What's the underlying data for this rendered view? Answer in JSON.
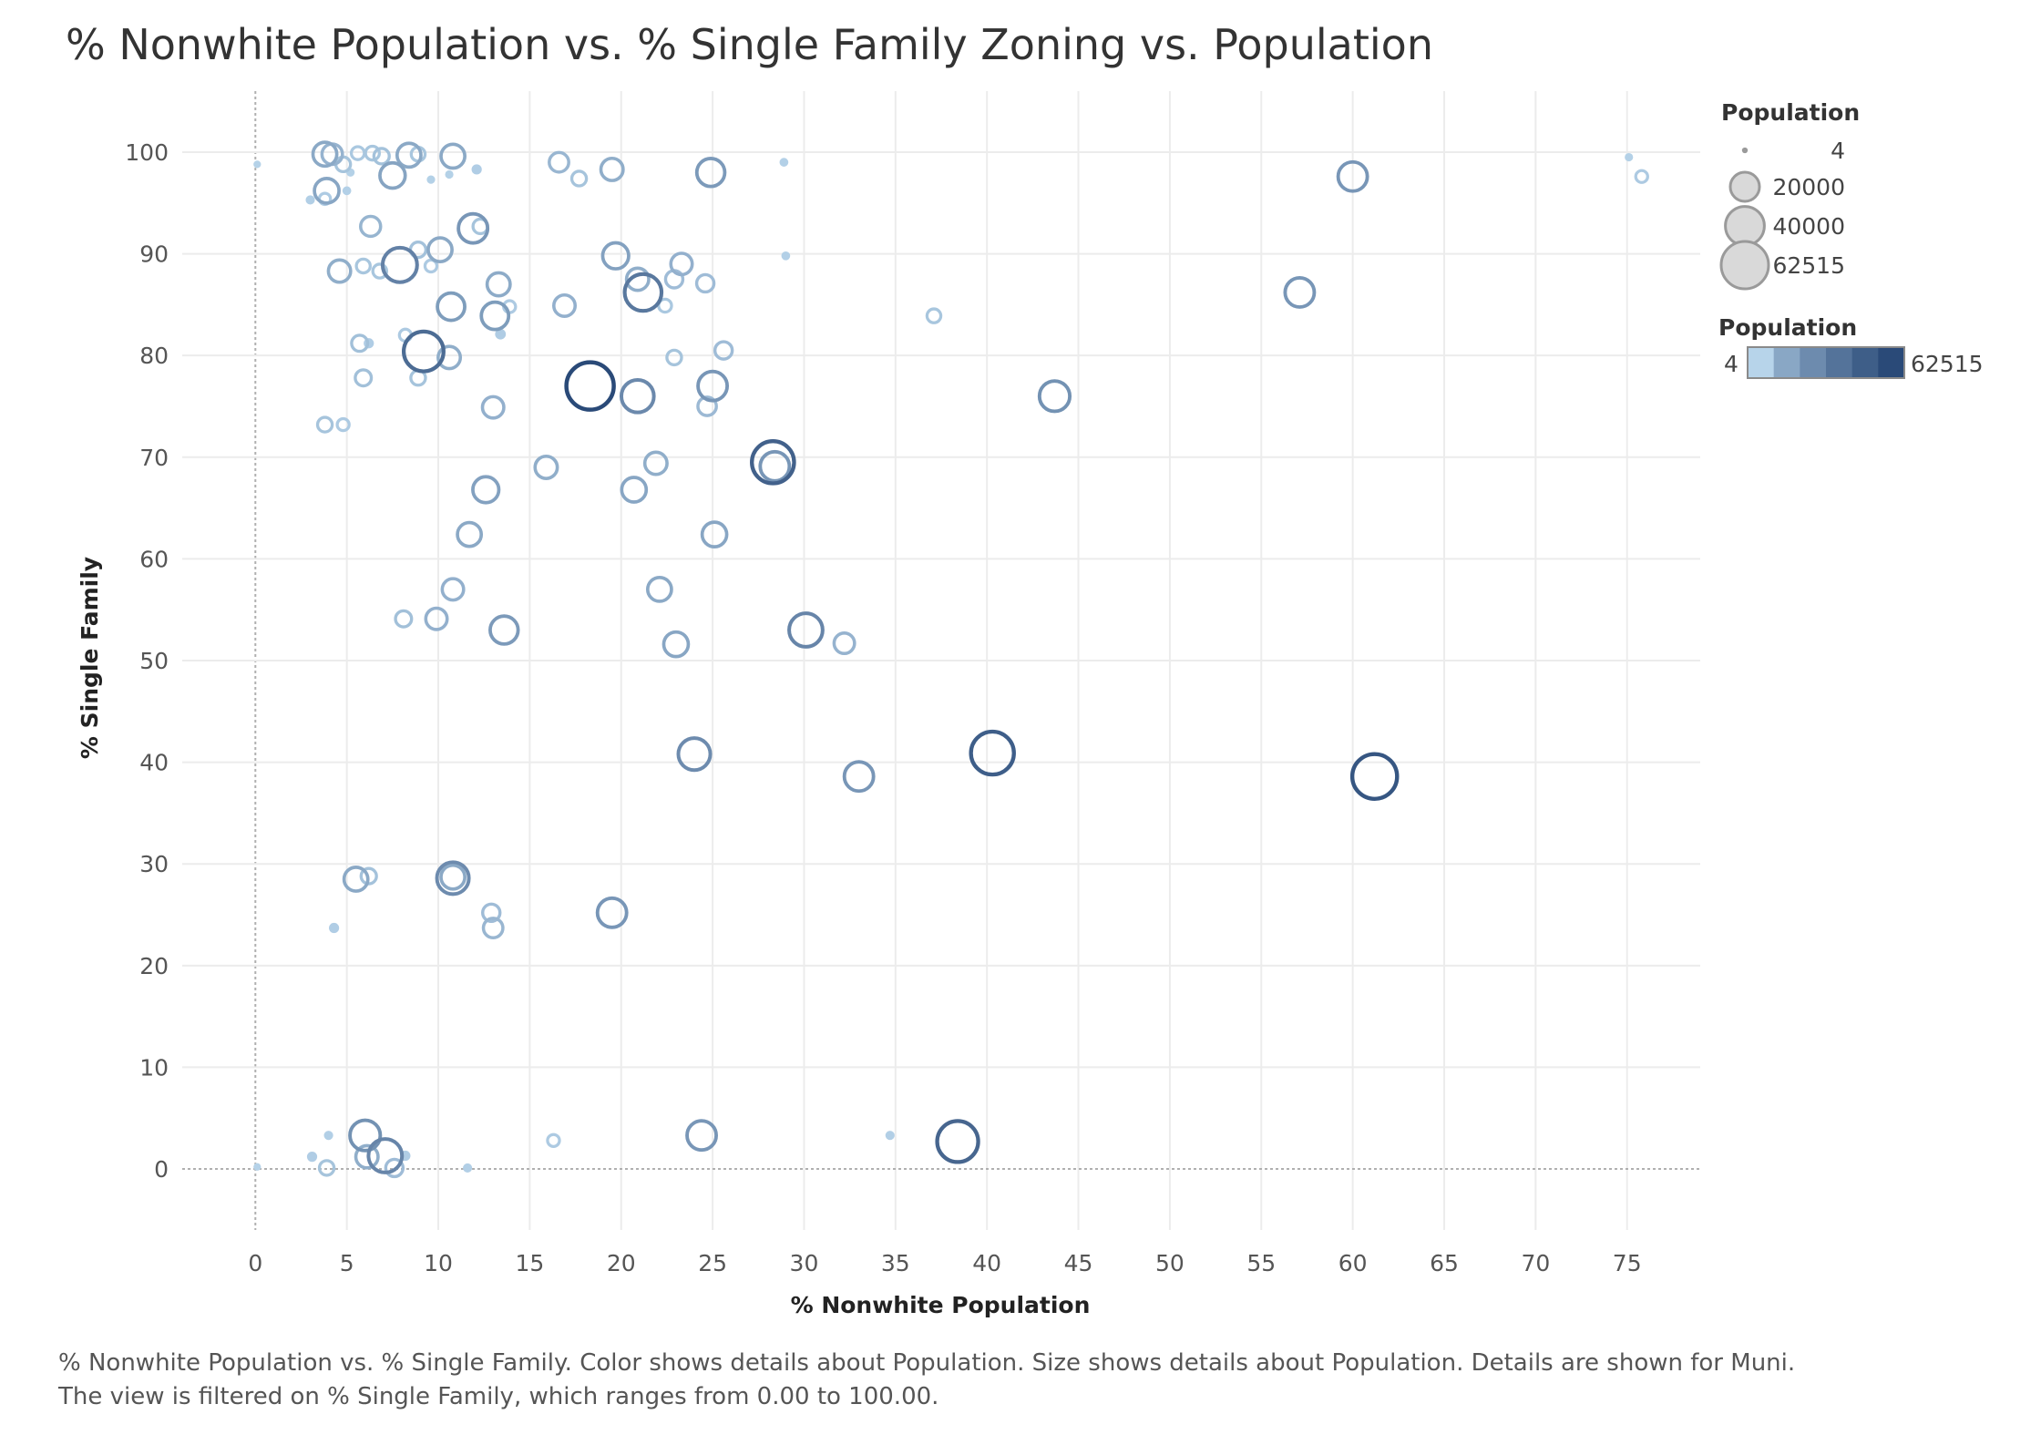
{
  "title": "% Nonwhite Population vs. % Single Family Zoning vs. Population",
  "caption": {
    "line1": "% Nonwhite Population vs. % Single Family.  Color shows details about Population.  Size shows details about Population.  Details are shown for Muni.",
    "line2": "The view is filtered on % Single Family, which ranges from 0.00 to 100.00."
  },
  "colors": {
    "light": "#b7d4ea",
    "dark": "#2a4a78",
    "grid": "#ececec",
    "zero_line": "#b0b0b0",
    "legend_gray": "#9a9a9a"
  },
  "chart_data": {
    "type": "scatter",
    "xlabel": "% Nonwhite Population",
    "ylabel": "% Single Family",
    "xlim": [
      -4,
      79
    ],
    "ylim": [
      -6,
      106
    ],
    "x_ticks": [
      0,
      5,
      10,
      15,
      20,
      25,
      30,
      35,
      40,
      45,
      50,
      55,
      60,
      65,
      70,
      75
    ],
    "y_ticks": [
      0,
      10,
      20,
      30,
      40,
      50,
      60,
      70,
      80,
      90,
      100
    ],
    "grid": true,
    "size_legend": {
      "title": "Population",
      "entries": [
        "4",
        "20000",
        "40000",
        "62515"
      ],
      "values": [
        4,
        20000,
        40000,
        62515
      ],
      "placement": "top-right"
    },
    "color_legend": {
      "title": "Population",
      "min_label": "4",
      "max_label": "62515",
      "min": 4,
      "max": 62515,
      "steps": 6,
      "placement": "top-right"
    },
    "points": [
      {
        "x": 0.1,
        "y": 98.8,
        "pop": 150
      },
      {
        "x": 0.1,
        "y": 0.2,
        "pop": 150
      },
      {
        "x": 3.8,
        "y": 99.8,
        "pop": 12000
      },
      {
        "x": 4.2,
        "y": 99.8,
        "pop": 8000
      },
      {
        "x": 4.8,
        "y": 98.8,
        "pop": 3000
      },
      {
        "x": 5.2,
        "y": 98.0,
        "pop": 300
      },
      {
        "x": 5.6,
        "y": 99.9,
        "pop": 2000
      },
      {
        "x": 6.4,
        "y": 99.9,
        "pop": 2500
      },
      {
        "x": 6.9,
        "y": 99.6,
        "pop": 3500
      },
      {
        "x": 8.4,
        "y": 99.7,
        "pop": 12000
      },
      {
        "x": 8.9,
        "y": 99.8,
        "pop": 2500
      },
      {
        "x": 10.8,
        "y": 99.6,
        "pop": 12000
      },
      {
        "x": 10.6,
        "y": 97.8,
        "pop": 300
      },
      {
        "x": 9.6,
        "y": 97.3,
        "pop": 300
      },
      {
        "x": 12.1,
        "y": 98.3,
        "pop": 800
      },
      {
        "x": 7.5,
        "y": 97.7,
        "pop": 14000
      },
      {
        "x": 3.0,
        "y": 95.3,
        "pop": 500
      },
      {
        "x": 3.8,
        "y": 95.4,
        "pop": 1200
      },
      {
        "x": 3.9,
        "y": 96.2,
        "pop": 13000
      },
      {
        "x": 5.0,
        "y": 96.2,
        "pop": 400
      },
      {
        "x": 16.6,
        "y": 99.0,
        "pop": 7000
      },
      {
        "x": 17.7,
        "y": 97.4,
        "pop": 3000
      },
      {
        "x": 19.5,
        "y": 98.3,
        "pop": 10000
      },
      {
        "x": 24.9,
        "y": 98.0,
        "pop": 18000
      },
      {
        "x": 28.9,
        "y": 99.0,
        "pop": 400
      },
      {
        "x": 6.3,
        "y": 92.7,
        "pop": 7500
      },
      {
        "x": 11.9,
        "y": 92.5,
        "pop": 20000
      },
      {
        "x": 12.3,
        "y": 92.7,
        "pop": 3000
      },
      {
        "x": 8.9,
        "y": 90.4,
        "pop": 3500
      },
      {
        "x": 10.1,
        "y": 90.4,
        "pop": 12000
      },
      {
        "x": 9.6,
        "y": 88.8,
        "pop": 1500
      },
      {
        "x": 4.6,
        "y": 88.3,
        "pop": 10000
      },
      {
        "x": 5.9,
        "y": 88.8,
        "pop": 2500
      },
      {
        "x": 6.8,
        "y": 88.3,
        "pop": 2500
      },
      {
        "x": 7.9,
        "y": 88.9,
        "pop": 30000
      },
      {
        "x": 19.7,
        "y": 89.8,
        "pop": 15000
      },
      {
        "x": 23.3,
        "y": 89.0,
        "pop": 9000
      },
      {
        "x": 29.0,
        "y": 89.8,
        "pop": 400
      },
      {
        "x": 20.9,
        "y": 87.5,
        "pop": 10000
      },
      {
        "x": 21.2,
        "y": 86.2,
        "pop": 35000
      },
      {
        "x": 22.9,
        "y": 87.5,
        "pop": 5000
      },
      {
        "x": 24.6,
        "y": 87.1,
        "pop": 5000
      },
      {
        "x": 13.3,
        "y": 87.0,
        "pop": 11000
      },
      {
        "x": 10.7,
        "y": 84.8,
        "pop": 17000
      },
      {
        "x": 13.1,
        "y": 83.9,
        "pop": 17000
      },
      {
        "x": 13.9,
        "y": 84.8,
        "pop": 1500
      },
      {
        "x": 16.9,
        "y": 84.9,
        "pop": 9000
      },
      {
        "x": 22.4,
        "y": 84.9,
        "pop": 2000
      },
      {
        "x": 13.4,
        "y": 82.1,
        "pop": 1000
      },
      {
        "x": 37.1,
        "y": 83.9,
        "pop": 2500
      },
      {
        "x": 57.1,
        "y": 86.2,
        "pop": 20000
      },
      {
        "x": 60.0,
        "y": 97.6,
        "pop": 20000
      },
      {
        "x": 75.1,
        "y": 99.5,
        "pop": 300
      },
      {
        "x": 75.8,
        "y": 97.6,
        "pop": 1500
      },
      {
        "x": 8.2,
        "y": 82.0,
        "pop": 1500
      },
      {
        "x": 5.7,
        "y": 81.2,
        "pop": 4000
      },
      {
        "x": 6.2,
        "y": 81.2,
        "pop": 800
      },
      {
        "x": 9.2,
        "y": 80.4,
        "pop": 42000
      },
      {
        "x": 10.6,
        "y": 79.8,
        "pop": 10000
      },
      {
        "x": 22.9,
        "y": 79.8,
        "pop": 3000
      },
      {
        "x": 25.6,
        "y": 80.5,
        "pop": 5000
      },
      {
        "x": 5.9,
        "y": 77.8,
        "pop": 4000
      },
      {
        "x": 8.9,
        "y": 77.8,
        "pop": 3000
      },
      {
        "x": 18.3,
        "y": 77.0,
        "pop": 62515
      },
      {
        "x": 20.9,
        "y": 76.0,
        "pop": 26000
      },
      {
        "x": 25.0,
        "y": 77.0,
        "pop": 20000
      },
      {
        "x": 24.7,
        "y": 75.0,
        "pop": 6000
      },
      {
        "x": 13.0,
        "y": 74.9,
        "pop": 9000
      },
      {
        "x": 43.7,
        "y": 76.0,
        "pop": 22000
      },
      {
        "x": 3.8,
        "y": 73.2,
        "pop": 3000
      },
      {
        "x": 4.8,
        "y": 73.2,
        "pop": 1500
      },
      {
        "x": 28.3,
        "y": 69.5,
        "pop": 48000
      },
      {
        "x": 28.4,
        "y": 69.1,
        "pop": 20000
      },
      {
        "x": 15.9,
        "y": 69.0,
        "pop": 10000
      },
      {
        "x": 21.9,
        "y": 69.4,
        "pop": 10000
      },
      {
        "x": 12.6,
        "y": 66.8,
        "pop": 15000
      },
      {
        "x": 20.7,
        "y": 66.8,
        "pop": 13000
      },
      {
        "x": 11.7,
        "y": 62.4,
        "pop": 12000
      },
      {
        "x": 25.1,
        "y": 62.4,
        "pop": 13000
      },
      {
        "x": 10.8,
        "y": 57.0,
        "pop": 9000
      },
      {
        "x": 22.1,
        "y": 57.0,
        "pop": 12000
      },
      {
        "x": 8.1,
        "y": 54.1,
        "pop": 4000
      },
      {
        "x": 9.9,
        "y": 54.1,
        "pop": 9000
      },
      {
        "x": 13.6,
        "y": 53.0,
        "pop": 18000
      },
      {
        "x": 30.1,
        "y": 53.0,
        "pop": 28000
      },
      {
        "x": 23.0,
        "y": 51.6,
        "pop": 13000
      },
      {
        "x": 32.2,
        "y": 51.7,
        "pop": 8000
      },
      {
        "x": 24.0,
        "y": 40.8,
        "pop": 25000
      },
      {
        "x": 40.3,
        "y": 40.9,
        "pop": 50000
      },
      {
        "x": 33.0,
        "y": 38.6,
        "pop": 20000
      },
      {
        "x": 61.2,
        "y": 38.6,
        "pop": 55000
      },
      {
        "x": 5.5,
        "y": 28.5,
        "pop": 12000
      },
      {
        "x": 6.2,
        "y": 28.8,
        "pop": 3500
      },
      {
        "x": 10.8,
        "y": 28.6,
        "pop": 25000
      },
      {
        "x": 10.8,
        "y": 28.7,
        "pop": 12000
      },
      {
        "x": 12.9,
        "y": 25.2,
        "pop": 5000
      },
      {
        "x": 13.0,
        "y": 23.7,
        "pop": 7000
      },
      {
        "x": 4.3,
        "y": 23.7,
        "pop": 800
      },
      {
        "x": 19.5,
        "y": 25.2,
        "pop": 20000
      },
      {
        "x": 6.0,
        "y": 3.3,
        "pop": 22000
      },
      {
        "x": 4.0,
        "y": 3.3,
        "pop": 500
      },
      {
        "x": 3.1,
        "y": 1.2,
        "pop": 800
      },
      {
        "x": 6.1,
        "y": 1.2,
        "pop": 10000
      },
      {
        "x": 7.1,
        "y": 1.3,
        "pop": 28000
      },
      {
        "x": 8.2,
        "y": 1.3,
        "pop": 800
      },
      {
        "x": 3.9,
        "y": 0.1,
        "pop": 3000
      },
      {
        "x": 7.6,
        "y": 0.1,
        "pop": 5000
      },
      {
        "x": 11.6,
        "y": 0.1,
        "pop": 500
      },
      {
        "x": 16.3,
        "y": 2.8,
        "pop": 1500
      },
      {
        "x": 24.4,
        "y": 3.3,
        "pop": 20000
      },
      {
        "x": 34.7,
        "y": 3.3,
        "pop": 500
      },
      {
        "x": 38.4,
        "y": 2.7,
        "pop": 45000
      }
    ]
  }
}
